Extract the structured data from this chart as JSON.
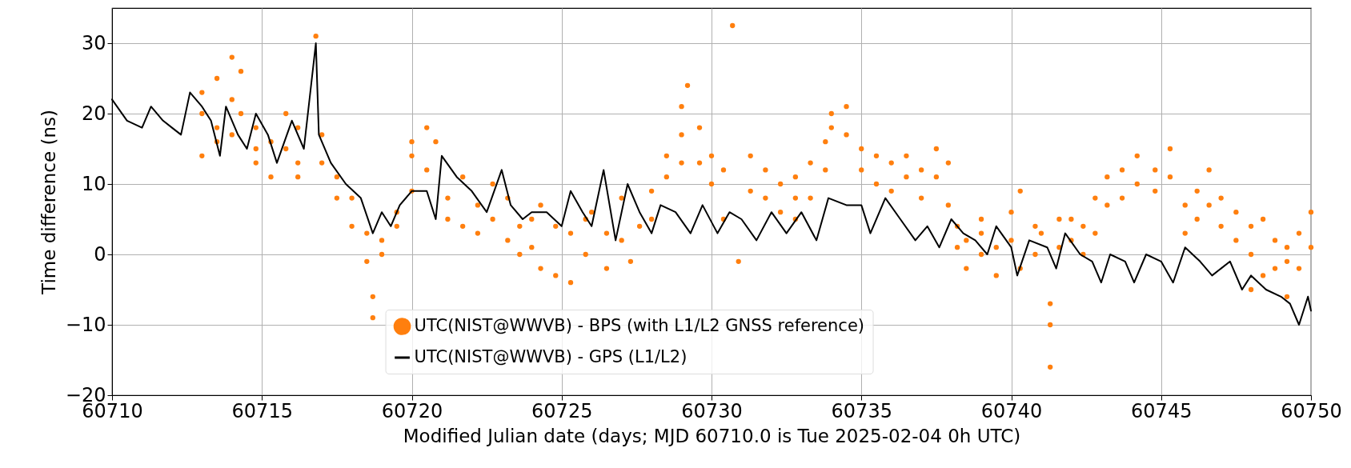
{
  "chart_data": {
    "type": "scatter",
    "xlabel": "Modified Julian date (days; MJD 60710.0 is Tue 2025-02-04 0h UTC)",
    "ylabel": "Time difference (ns)",
    "xlim": [
      60710,
      60750
    ],
    "xticks": [
      60710,
      60715,
      60720,
      60725,
      60730,
      60735,
      60740,
      60745,
      60750
    ],
    "ylim": [
      -20,
      35
    ],
    "yticks": [
      -20,
      -10,
      0,
      10,
      20,
      30
    ],
    "grid": true,
    "legend": "bottom",
    "series": [
      {
        "name": "UTC(NIST@WWVB) - BPS (with L1/L2 GNSS reference)",
        "color": "#ff7f0e",
        "x": [
          60713,
          60713,
          60713,
          60713.5,
          60713.5,
          60713.5,
          60714,
          60714,
          60714,
          60714.3,
          60714.3,
          60714.8,
          60714.8,
          60714.8,
          60715.3,
          60715.3,
          60715.8,
          60715.8,
          60716.2,
          60716.2,
          60716.2,
          60716.8,
          60717,
          60717,
          60717.5,
          60717.5,
          60718,
          60718,
          60718.5,
          60718.5,
          60718.7,
          60718.7,
          60719,
          60719,
          60719.5,
          60719.5,
          60720,
          60720,
          60720,
          60720.5,
          60720.5,
          60720.8,
          60721.2,
          60721.2,
          60721.7,
          60721.7,
          60722.2,
          60722.2,
          60722.7,
          60722.7,
          60723.2,
          60723.2,
          60723.6,
          60723.6,
          60724,
          60724,
          60724.3,
          60724.3,
          60724.8,
          60724.8,
          60725.3,
          60725.3,
          60725.8,
          60725.8,
          60726,
          60726.5,
          60726.5,
          60727,
          60727,
          60727.3,
          60727.6,
          60728,
          60728,
          60728.5,
          60728.5,
          60729,
          60729,
          60729,
          60729.2,
          60729.6,
          60729.6,
          60730,
          60730,
          60730.4,
          60730.4,
          60730.7,
          60730.9,
          60731.3,
          60731.3,
          60731.8,
          60731.8,
          60732.3,
          60732.3,
          60732.8,
          60732.8,
          60732.8,
          60733.3,
          60733.3,
          60733.8,
          60733.8,
          60734,
          60734,
          60734.5,
          60734.5,
          60735,
          60735,
          60735.5,
          60735.5,
          60736,
          60736,
          60736.5,
          60736.5,
          60737,
          60737,
          60737.5,
          60737.5,
          60737.9,
          60737.9,
          60738.2,
          60738.2,
          60738.5,
          60738.5,
          60739,
          60739,
          60739,
          60739.5,
          60739.5,
          60740,
          60740,
          60740.3,
          60740.3,
          60740.8,
          60740.8,
          60741,
          60741.3,
          60741.3,
          60741.3,
          60741.6,
          60741.6,
          60742,
          60742,
          60742.4,
          60742.4,
          60742.8,
          60742.8,
          60743.2,
          60743.2,
          60743.7,
          60743.7,
          60744.2,
          60744.2,
          60744.8,
          60744.8,
          60745.3,
          60745.3,
          60745.8,
          60745.8,
          60746.2,
          60746.2,
          60746.6,
          60746.6,
          60747,
          60747,
          60747.5,
          60747.5,
          60748,
          60748,
          60748,
          60748.4,
          60748.4,
          60748.8,
          60748.8,
          60749.2,
          60749.2,
          60749.2,
          60749.6,
          60749.6,
          60750,
          60750
        ],
        "values": [
          23,
          14,
          20,
          25,
          18,
          16,
          28,
          22,
          17,
          26,
          20,
          18,
          13,
          15,
          16,
          11,
          20,
          15,
          18,
          13,
          11,
          31,
          17,
          13,
          11,
          8,
          8,
          4,
          3,
          -1,
          -6,
          -9,
          2,
          0,
          6,
          4,
          16,
          14,
          9,
          18,
          12,
          16,
          8,
          5,
          11,
          4,
          7,
          3,
          10,
          5,
          8,
          2,
          4,
          0,
          5,
          1,
          7,
          -2,
          4,
          -3,
          3,
          -4,
          5,
          0,
          6,
          3,
          -2,
          8,
          2,
          -1,
          4,
          5,
          9,
          11,
          14,
          17,
          13,
          21,
          24,
          18,
          13,
          14,
          10,
          12,
          5,
          32.5,
          -1,
          14,
          9,
          12,
          8,
          10,
          6,
          8,
          5,
          11,
          13,
          8,
          16,
          12,
          20,
          18,
          21,
          17,
          15,
          12,
          14,
          10,
          13,
          9,
          14,
          11,
          12,
          8,
          15,
          11,
          13,
          7,
          4,
          1,
          2,
          -2,
          3,
          0,
          5,
          1,
          -3,
          6,
          2,
          -2,
          9,
          4,
          0,
          3,
          -7,
          -10,
          -16,
          5,
          1,
          5,
          2,
          4,
          0,
          8,
          3,
          11,
          7,
          12,
          8,
          10,
          14,
          9,
          12,
          11,
          15,
          7,
          3,
          9,
          5,
          12,
          7,
          8,
          4,
          6,
          2,
          4,
          0,
          -5,
          5,
          -3,
          2,
          -2,
          1,
          -1,
          -6,
          3,
          -2,
          1,
          6
        ]
      },
      {
        "type": "line",
        "name": "UTC(NIST@WWVB) - GPS (L1/L2)",
        "color": "#000000",
        "x": [
          60710,
          60710.5,
          60711,
          60711.3,
          60711.7,
          60712,
          60712.3,
          60712.6,
          60713,
          60713.3,
          60713.6,
          60713.8,
          60714.2,
          60714.5,
          60714.8,
          60715.2,
          60715.5,
          60716,
          60716.4,
          60716.8,
          60716.9,
          60717.3,
          60717.8,
          60718.3,
          60718.7,
          60719,
          60719.3,
          60719.6,
          60720,
          60720.5,
          60720.8,
          60721,
          60721.5,
          60722,
          60722.5,
          60723,
          60723.3,
          60723.7,
          60724,
          60724.5,
          60725,
          60725.3,
          60725.7,
          60726,
          60726.4,
          60726.8,
          60727.2,
          60727.6,
          60728,
          60728.3,
          60728.8,
          60729.3,
          60729.7,
          60730.2,
          60730.6,
          60731,
          60731.5,
          60732,
          60732.5,
          60733,
          60733.5,
          60733.9,
          60734.5,
          60735,
          60735.3,
          60735.8,
          60736.3,
          60736.8,
          60737.2,
          60737.6,
          60738,
          60738.4,
          60738.8,
          60739.2,
          60739.5,
          60740,
          60740.2,
          60740.6,
          60741.2,
          60741.5,
          60741.8,
          60742.3,
          60742.7,
          60743,
          60743.3,
          60743.8,
          60744.1,
          60744.5,
          60745,
          60745.4,
          60745.8,
          60746.3,
          60746.7,
          60747.3,
          60747.7,
          60748,
          60748.5,
          60749,
          60749.3,
          60749.6,
          60749.9,
          60750
        ],
        "values": [
          22,
          19,
          18,
          21,
          19,
          18,
          17,
          23,
          21,
          19,
          14,
          21,
          17,
          15,
          20,
          17,
          13,
          19,
          15,
          30,
          17,
          13,
          10,
          8,
          3,
          6,
          4,
          7,
          9,
          9,
          5,
          14,
          11,
          9,
          6,
          12,
          7,
          5,
          6,
          6,
          4,
          9,
          6,
          4,
          12,
          2,
          10,
          6,
          3,
          7,
          6,
          3,
          7,
          3,
          6,
          5,
          2,
          6,
          3,
          6,
          2,
          8,
          7,
          7,
          3,
          8,
          5,
          2,
          4,
          1,
          5,
          3,
          2,
          0,
          4,
          1,
          -3,
          2,
          1,
          -2,
          3,
          0,
          -1,
          -4,
          0,
          -1,
          -4,
          0,
          -1,
          -4,
          1,
          -1,
          -3,
          -1,
          -5,
          -3,
          -5,
          -6,
          -7,
          -10,
          -6,
          -8
        ]
      }
    ]
  }
}
